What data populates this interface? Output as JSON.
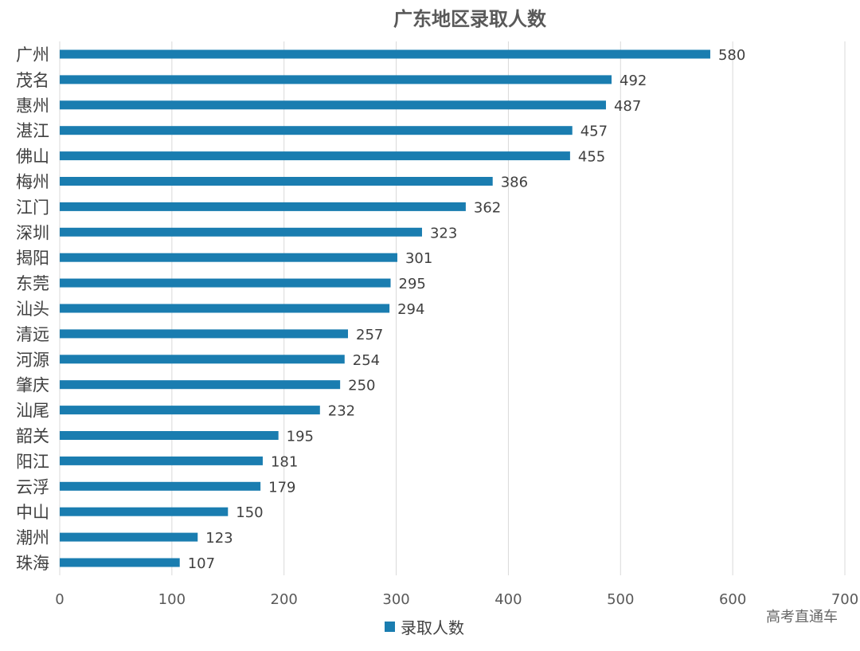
{
  "chart_data": {
    "type": "bar",
    "orientation": "horizontal",
    "title": "广东地区录取人数",
    "categories": [
      "广州",
      "茂名",
      "惠州",
      "湛江",
      "佛山",
      "梅州",
      "江门",
      "深圳",
      "揭阳",
      "东莞",
      "汕头",
      "清远",
      "河源",
      "肇庆",
      "汕尾",
      "韶关",
      "阳江",
      "云浮",
      "中山",
      "潮州",
      "珠海"
    ],
    "series": [
      {
        "name": "录取人数",
        "values": [
          580,
          492,
          487,
          457,
          455,
          386,
          362,
          323,
          301,
          295,
          294,
          257,
          254,
          250,
          232,
          195,
          181,
          179,
          150,
          123,
          107
        ]
      }
    ],
    "xlim": [
      0,
      700
    ],
    "xticks": [
      "0",
      "100",
      "200",
      "300",
      "400",
      "500",
      "600",
      "700"
    ],
    "grid": true,
    "legend": "bottom",
    "bar_color": "#1a7db0",
    "data_labels": true
  },
  "watermark": "高考直通车"
}
